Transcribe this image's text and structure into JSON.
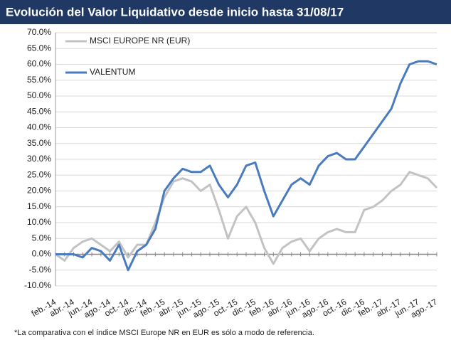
{
  "chart_data": {
    "type": "line",
    "title": "Evolución del Valor Liquidativo desde inicio hasta 31/08/17",
    "footnote": "*La comparativa con el índice MSCI Europe NR en EUR es sólo a modo de referencia.",
    "categories": [
      "feb.-14",
      null,
      "abr.-14",
      null,
      "jun.-14",
      null,
      "ago.-14",
      null,
      "oct.-14",
      null,
      "dic.-14",
      null,
      "feb.-15",
      null,
      "abr.-15",
      null,
      "jun.-15",
      null,
      "ago.-15",
      null,
      "oct.-15",
      null,
      "dic.-15",
      null,
      "feb.-16",
      null,
      "abr.-16",
      null,
      "jun.-16",
      null,
      "ago.-16",
      null,
      "oct.-16",
      null,
      "dic.-16",
      null,
      "feb.-17",
      null,
      "abr.-17",
      null,
      "jun.-17",
      null,
      "ago.-17"
    ],
    "series": [
      {
        "name": "MSCI EUROPE NR (EUR)",
        "color": "#c3c3c3",
        "values": [
          0,
          -2,
          2,
          4,
          5,
          3,
          1,
          4,
          -1,
          3,
          3,
          10,
          18,
          23,
          24,
          23,
          20,
          22,
          14,
          5,
          12,
          15,
          10,
          2,
          -3,
          2,
          4,
          5,
          1,
          5,
          7,
          8,
          7,
          7,
          14,
          15,
          17,
          20,
          22,
          26,
          25,
          24,
          21
        ]
      },
      {
        "name": "VALENTUM",
        "color": "#4a7bbf",
        "values": [
          0,
          0,
          0,
          -1,
          2,
          1,
          -2,
          3,
          -5,
          1,
          3,
          8,
          20,
          24,
          27,
          26,
          26,
          28,
          22,
          18,
          22,
          28,
          29,
          20,
          12,
          17,
          22,
          24,
          22,
          28,
          31,
          32,
          30,
          30,
          34,
          38,
          42,
          46,
          54,
          60,
          61,
          61,
          60
        ]
      }
    ],
    "ylim": [
      -10,
      70
    ],
    "yticks": [
      {
        "value": -10,
        "label": "-10.0%"
      },
      {
        "value": -5,
        "label": "-5.0%"
      },
      {
        "value": 0,
        "label": "0.0%"
      },
      {
        "value": 5,
        "label": "5.0%"
      },
      {
        "value": 10,
        "label": "10.0%"
      },
      {
        "value": 15,
        "label": "15.0%"
      },
      {
        "value": 20,
        "label": "20.0%"
      },
      {
        "value": 25,
        "label": "25.0%"
      },
      {
        "value": 30,
        "label": "30.0%"
      },
      {
        "value": 35,
        "label": "35.0%"
      },
      {
        "value": 40,
        "label": "40.0%"
      },
      {
        "value": 45,
        "label": "45.0%"
      },
      {
        "value": 50,
        "label": "50.0%"
      },
      {
        "value": 55,
        "label": "55.0%"
      },
      {
        "value": 60,
        "label": "60.0%"
      },
      {
        "value": 65,
        "label": "65.0%"
      },
      {
        "value": 70,
        "label": "70.0%"
      }
    ],
    "grid": true,
    "legend": "upper left"
  }
}
